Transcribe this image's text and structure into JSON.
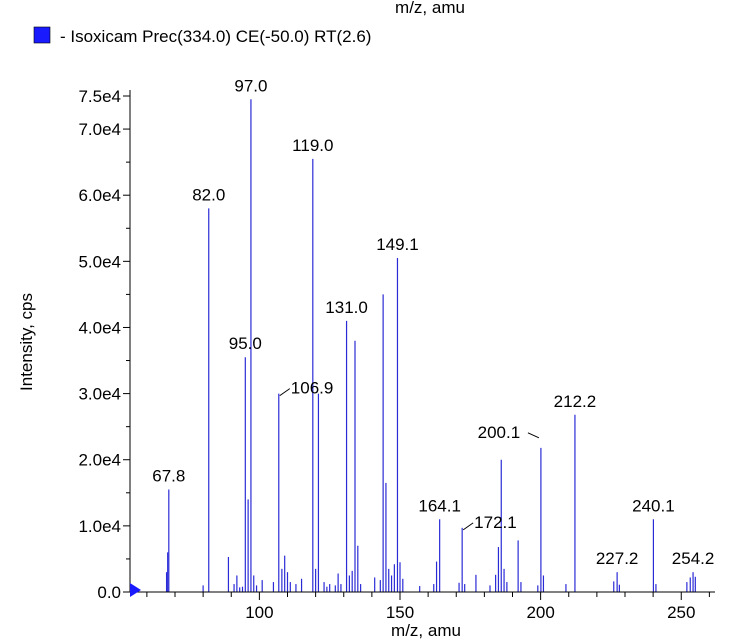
{
  "chart_data": {
    "type": "bar",
    "top_clipped_label": "m/z, amu",
    "legend": {
      "name": "- Isoxicam Prec(334.0) CE(-50.0) RT(2.6)",
      "color": "#1a1aff"
    },
    "xlabel": "m/z, amu",
    "ylabel": "Intensity, cps",
    "xlim": [
      54,
      262
    ],
    "ylim": [
      0,
      75000
    ],
    "x_ticks": [
      100,
      150,
      200,
      250
    ],
    "y_ticks": [
      0,
      10000,
      20000,
      30000,
      40000,
      50000,
      60000,
      70000,
      75000
    ],
    "y_tick_labels": [
      "0.0",
      "1.0e4",
      "2.0e4",
      "3.0e4",
      "4.0e4",
      "5.0e4",
      "6.0e4",
      "7.0e4",
      "7.5e4"
    ],
    "bar_color": "#2b2bd6",
    "peaks": [
      {
        "x": 67.0,
        "y": 3000
      },
      {
        "x": 67.4,
        "y": 6000
      },
      {
        "x": 67.8,
        "y": 15500
      },
      {
        "x": 80.0,
        "y": 1000
      },
      {
        "x": 82.0,
        "y": 58000
      },
      {
        "x": 89.0,
        "y": 5300
      },
      {
        "x": 91.0,
        "y": 1200
      },
      {
        "x": 92.0,
        "y": 2500
      },
      {
        "x": 93.0,
        "y": 700
      },
      {
        "x": 94.0,
        "y": 800
      },
      {
        "x": 95.0,
        "y": 35500
      },
      {
        "x": 96.0,
        "y": 14000
      },
      {
        "x": 97.0,
        "y": 74500
      },
      {
        "x": 98.0,
        "y": 2500
      },
      {
        "x": 99.0,
        "y": 1000
      },
      {
        "x": 101.0,
        "y": 1800
      },
      {
        "x": 105.0,
        "y": 1500
      },
      {
        "x": 106.9,
        "y": 30000
      },
      {
        "x": 108.0,
        "y": 3500
      },
      {
        "x": 109.0,
        "y": 5500
      },
      {
        "x": 110.0,
        "y": 3000
      },
      {
        "x": 111.0,
        "y": 1500
      },
      {
        "x": 113.0,
        "y": 1200
      },
      {
        "x": 115.0,
        "y": 2000
      },
      {
        "x": 119.0,
        "y": 65500
      },
      {
        "x": 120.0,
        "y": 3500
      },
      {
        "x": 121.0,
        "y": 30000
      },
      {
        "x": 123.0,
        "y": 1500
      },
      {
        "x": 124.0,
        "y": 800
      },
      {
        "x": 125.0,
        "y": 1200
      },
      {
        "x": 127.0,
        "y": 1000
      },
      {
        "x": 128.0,
        "y": 2800
      },
      {
        "x": 129.0,
        "y": 1200
      },
      {
        "x": 131.0,
        "y": 41000
      },
      {
        "x": 132.0,
        "y": 2500
      },
      {
        "x": 133.0,
        "y": 3200
      },
      {
        "x": 134.0,
        "y": 38000
      },
      {
        "x": 135.0,
        "y": 7000
      },
      {
        "x": 136.0,
        "y": 1200
      },
      {
        "x": 141.0,
        "y": 2200
      },
      {
        "x": 143.0,
        "y": 1800
      },
      {
        "x": 144.0,
        "y": 45000
      },
      {
        "x": 145.0,
        "y": 16500
      },
      {
        "x": 146.0,
        "y": 3500
      },
      {
        "x": 147.0,
        "y": 2500
      },
      {
        "x": 148.0,
        "y": 4200
      },
      {
        "x": 149.1,
        "y": 50500
      },
      {
        "x": 150.0,
        "y": 4500
      },
      {
        "x": 151.0,
        "y": 2000
      },
      {
        "x": 157.0,
        "y": 900
      },
      {
        "x": 162.0,
        "y": 1200
      },
      {
        "x": 163.0,
        "y": 4600
      },
      {
        "x": 164.1,
        "y": 11000
      },
      {
        "x": 171.0,
        "y": 1400
      },
      {
        "x": 172.1,
        "y": 9700
      },
      {
        "x": 173.0,
        "y": 1200
      },
      {
        "x": 177.0,
        "y": 2600
      },
      {
        "x": 182.0,
        "y": 1000
      },
      {
        "x": 184.0,
        "y": 2600
      },
      {
        "x": 185.0,
        "y": 6800
      },
      {
        "x": 186.0,
        "y": 20000
      },
      {
        "x": 187.0,
        "y": 3500
      },
      {
        "x": 188.0,
        "y": 1500
      },
      {
        "x": 192.0,
        "y": 7800
      },
      {
        "x": 193.0,
        "y": 1500
      },
      {
        "x": 199.0,
        "y": 1000
      },
      {
        "x": 200.1,
        "y": 21800
      },
      {
        "x": 201.0,
        "y": 2500
      },
      {
        "x": 209.0,
        "y": 1200
      },
      {
        "x": 212.2,
        "y": 26800
      },
      {
        "x": 226.0,
        "y": 1600
      },
      {
        "x": 227.2,
        "y": 3000
      },
      {
        "x": 228.0,
        "y": 1100
      },
      {
        "x": 240.1,
        "y": 11000
      },
      {
        "x": 241.0,
        "y": 1200
      },
      {
        "x": 252.0,
        "y": 1500
      },
      {
        "x": 253.2,
        "y": 2200
      },
      {
        "x": 254.2,
        "y": 3000
      },
      {
        "x": 255.0,
        "y": 2300
      }
    ],
    "annotations": [
      {
        "text": "67.8",
        "x": 67.8,
        "y": 15500,
        "leader": false
      },
      {
        "text": "82.0",
        "x": 82.0,
        "y": 58000,
        "leader": false
      },
      {
        "text": "95.0",
        "x": 95.0,
        "y": 35500,
        "leader": false
      },
      {
        "text": "97.0",
        "x": 97.0,
        "y": 74500,
        "leader": false
      },
      {
        "text": "106.9",
        "x": 106.9,
        "y": 30000,
        "leader": true
      },
      {
        "text": "119.0",
        "x": 119.0,
        "y": 65500,
        "leader": false
      },
      {
        "text": "131.0",
        "x": 131.0,
        "y": 41000,
        "leader": false
      },
      {
        "text": "149.1",
        "x": 149.1,
        "y": 50500,
        "leader": false
      },
      {
        "text": "164.1",
        "x": 164.1,
        "y": 11000,
        "leader": false
      },
      {
        "text": "172.1",
        "x": 172.1,
        "y": 9700,
        "leader": true
      },
      {
        "text": "200.1",
        "x": 200.1,
        "y": 21800,
        "leader": true
      },
      {
        "text": "212.2",
        "x": 212.2,
        "y": 26800,
        "leader": false
      },
      {
        "text": "227.2",
        "x": 227.2,
        "y": 3000,
        "leader": false
      },
      {
        "text": "240.1",
        "x": 240.1,
        "y": 11000,
        "leader": false
      },
      {
        "text": "254.2",
        "x": 254.2,
        "y": 3000,
        "leader": false
      }
    ]
  }
}
